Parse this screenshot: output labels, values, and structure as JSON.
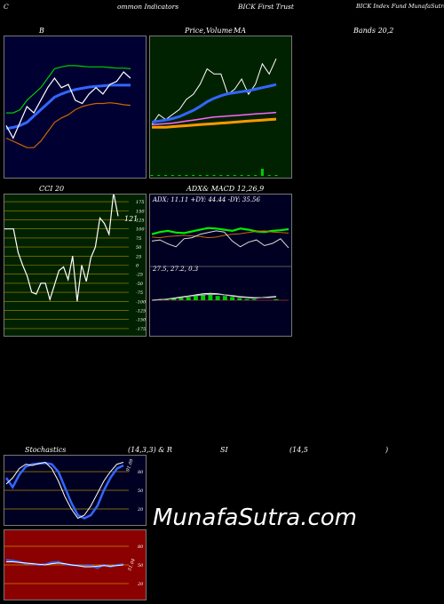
{
  "header": {
    "c1": "C",
    "c2": "ommon  Indicators",
    "c3": "BICK First Trust",
    "c4": "BICK Index Fund MunafaSutra.com"
  },
  "watermark": "MunafaSutra.com",
  "colors": {
    "bollinger_bg": "#000033",
    "price_bg": "#002200",
    "cci_bg": "#002200",
    "adx_bg": "#000022",
    "stoch_bg": "#000022",
    "rsi_bg": "#8b0000"
  },
  "chart_data": [
    {
      "type": "line",
      "id": "bollinger",
      "title_parts": [
        "B",
        "Bands 20,2"
      ],
      "series": [
        {
          "name": "",
          "color": "#00cc00",
          "values": [
            17,
            17,
            17.5,
            19,
            20,
            21,
            22.5,
            24,
            24.3,
            24.5,
            24.5,
            24.4,
            24.3,
            24.3,
            24.3,
            24.2,
            24.1,
            24.1,
            24.0
          ]
        },
        {
          "name": "",
          "color": "#3366ff",
          "values": [
            14.5,
            14.7,
            15,
            15.5,
            16.5,
            17.5,
            18.5,
            19.5,
            20,
            20.4,
            20.7,
            20.9,
            21.1,
            21.2,
            21.3,
            21.4,
            21.4,
            21.4,
            21.4
          ]
        },
        {
          "name": "",
          "color": "#cc6600",
          "values": [
            13,
            12.5,
            12,
            11.5,
            11.5,
            12.5,
            14,
            15.5,
            16.2,
            16.7,
            17.5,
            18,
            18.3,
            18.5,
            18.5,
            18.6,
            18.5,
            18.3,
            18.2
          ]
        },
        {
          "name": "",
          "color": "#ffffff",
          "values": [
            15,
            13,
            15.5,
            18,
            17,
            19,
            21,
            22.5,
            21,
            21.5,
            19,
            18.5,
            20,
            21,
            20,
            21.5,
            22,
            23.5,
            22.5
          ]
        }
      ]
    },
    {
      "type": "line",
      "id": "price_ma",
      "title_parts": [
        "Price,",
        "Volume",
        "MA"
      ],
      "series": [
        {
          "name": "",
          "color": "#ffffff",
          "values": [
            18,
            20,
            19,
            20,
            21,
            23,
            24,
            26,
            29,
            28,
            28,
            24,
            25,
            27,
            24,
            26,
            30,
            28,
            31
          ]
        },
        {
          "name": "",
          "color": "#3366ff",
          "values": [
            18.5,
            18.7,
            18.9,
            19.2,
            19.6,
            20.2,
            20.8,
            21.6,
            22.5,
            23.2,
            23.7,
            24.1,
            24.3,
            24.5,
            24.7,
            25.0,
            25.3,
            25.6,
            25.9
          ]
        },
        {
          "name": "",
          "color": "#ff9900",
          "values": [
            17.5,
            17.5,
            17.5,
            17.6,
            17.7,
            17.8,
            17.9,
            18.0,
            18.1,
            18.2,
            18.3,
            18.4,
            18.5,
            18.6,
            18.7,
            18.8,
            18.9,
            19.0,
            19.1
          ]
        },
        {
          "name": "",
          "color": "#ff66ff",
          "values": [
            18.0,
            18.1,
            18.2,
            18.3,
            18.5,
            18.7,
            18.9,
            19.1,
            19.3,
            19.5,
            19.6,
            19.7,
            19.8,
            19.9,
            20.0,
            20.1,
            20.2,
            20.3,
            20.4
          ]
        }
      ],
      "volume": [
        1,
        1,
        1,
        1,
        1,
        1,
        1,
        1,
        1,
        1,
        1,
        1,
        1,
        1,
        1,
        1,
        8,
        1,
        1
      ]
    },
    {
      "type": "line",
      "id": "cci",
      "title_parts": [
        "CCI 20"
      ],
      "value_label": "121",
      "yticks": [
        "175",
        "150",
        "125",
        "100",
        "75",
        "50",
        "25",
        "0",
        "-25",
        "-50",
        "-75",
        "-100",
        "-125",
        "-150",
        "-175"
      ],
      "ylim": [
        -185,
        185
      ],
      "values": [
        100,
        100,
        100,
        35,
        0,
        -30,
        -75,
        -80,
        -50,
        -50,
        -95,
        -55,
        -15,
        -5,
        -40,
        25,
        -100,
        0,
        -45,
        20,
        50,
        130,
        115,
        85,
        200,
        135
      ]
    },
    {
      "type": "line",
      "id": "adx",
      "title_parts": [
        "ADX",
        "& MACD 12,26,9"
      ],
      "readout": "ADX: 11.11  +DY: 44.44  -DY: 35.56",
      "series": [
        {
          "name": "",
          "color": "#00ee00",
          "values": [
            52,
            56,
            58,
            55,
            54,
            57,
            60,
            63,
            62,
            60,
            58,
            62,
            60,
            57,
            56,
            58,
            59,
            61
          ]
        },
        {
          "name": "",
          "color": "#cc6600",
          "values": [
            47,
            46,
            48,
            49,
            50,
            49,
            48,
            46,
            47,
            50,
            52,
            53,
            55,
            57,
            58,
            56,
            55,
            54
          ]
        },
        {
          "name": "",
          "color": "#dddddd",
          "values": [
            40,
            42,
            35,
            30,
            44,
            46,
            52,
            55,
            58,
            56,
            40,
            30,
            38,
            42,
            32,
            36,
            44,
            28
          ]
        }
      ],
      "macd_readout": "27.5,  27.2,  0.3",
      "macd_hist": [
        0.0,
        0.1,
        0.1,
        0.2,
        0.3,
        0.3,
        0.5,
        0.5,
        0.5,
        0.4,
        0.4,
        0.3,
        0.2,
        0.1,
        0.1,
        0.0,
        0.0,
        0.1
      ]
    },
    {
      "type": "line",
      "id": "stochastics",
      "title_parts": [
        "Stochastics",
        "(14,3,3) & R"
      ],
      "value_label": "91.09",
      "yticks": [
        "80",
        "50",
        "20"
      ],
      "ylim": [
        0,
        100
      ],
      "series": [
        {
          "name": "",
          "color": "#3366ff",
          "values": [
            70,
            55,
            75,
            88,
            92,
            93,
            94,
            92,
            80,
            55,
            30,
            10,
            5,
            10,
            25,
            50,
            70,
            85,
            90
          ]
        },
        {
          "name": "",
          "color": "#ffffff",
          "values": [
            60,
            70,
            85,
            92,
            90,
            93,
            95,
            85,
            65,
            40,
            20,
            5,
            10,
            25,
            45,
            65,
            80,
            92,
            95
          ]
        }
      ]
    },
    {
      "type": "line",
      "id": "rsi",
      "title_parts": [
        "SI",
        "(14,5",
        ")"
      ],
      "value_label": "51.04",
      "yticks": [
        "80",
        "50",
        "20"
      ],
      "ylim": [
        0,
        100
      ],
      "series": [
        {
          "name": "",
          "color": "#3366ff",
          "values": [
            58,
            57,
            55,
            52,
            52,
            50,
            51,
            54,
            55,
            51,
            50,
            49,
            48,
            49,
            45,
            50,
            47,
            50,
            51
          ]
        },
        {
          "name": "",
          "color": "#ffffff",
          "values": [
            55,
            55,
            54,
            53,
            52,
            51,
            50,
            52,
            53,
            52,
            50,
            49,
            47,
            47,
            48,
            49,
            48,
            49,
            50
          ]
        }
      ]
    }
  ]
}
